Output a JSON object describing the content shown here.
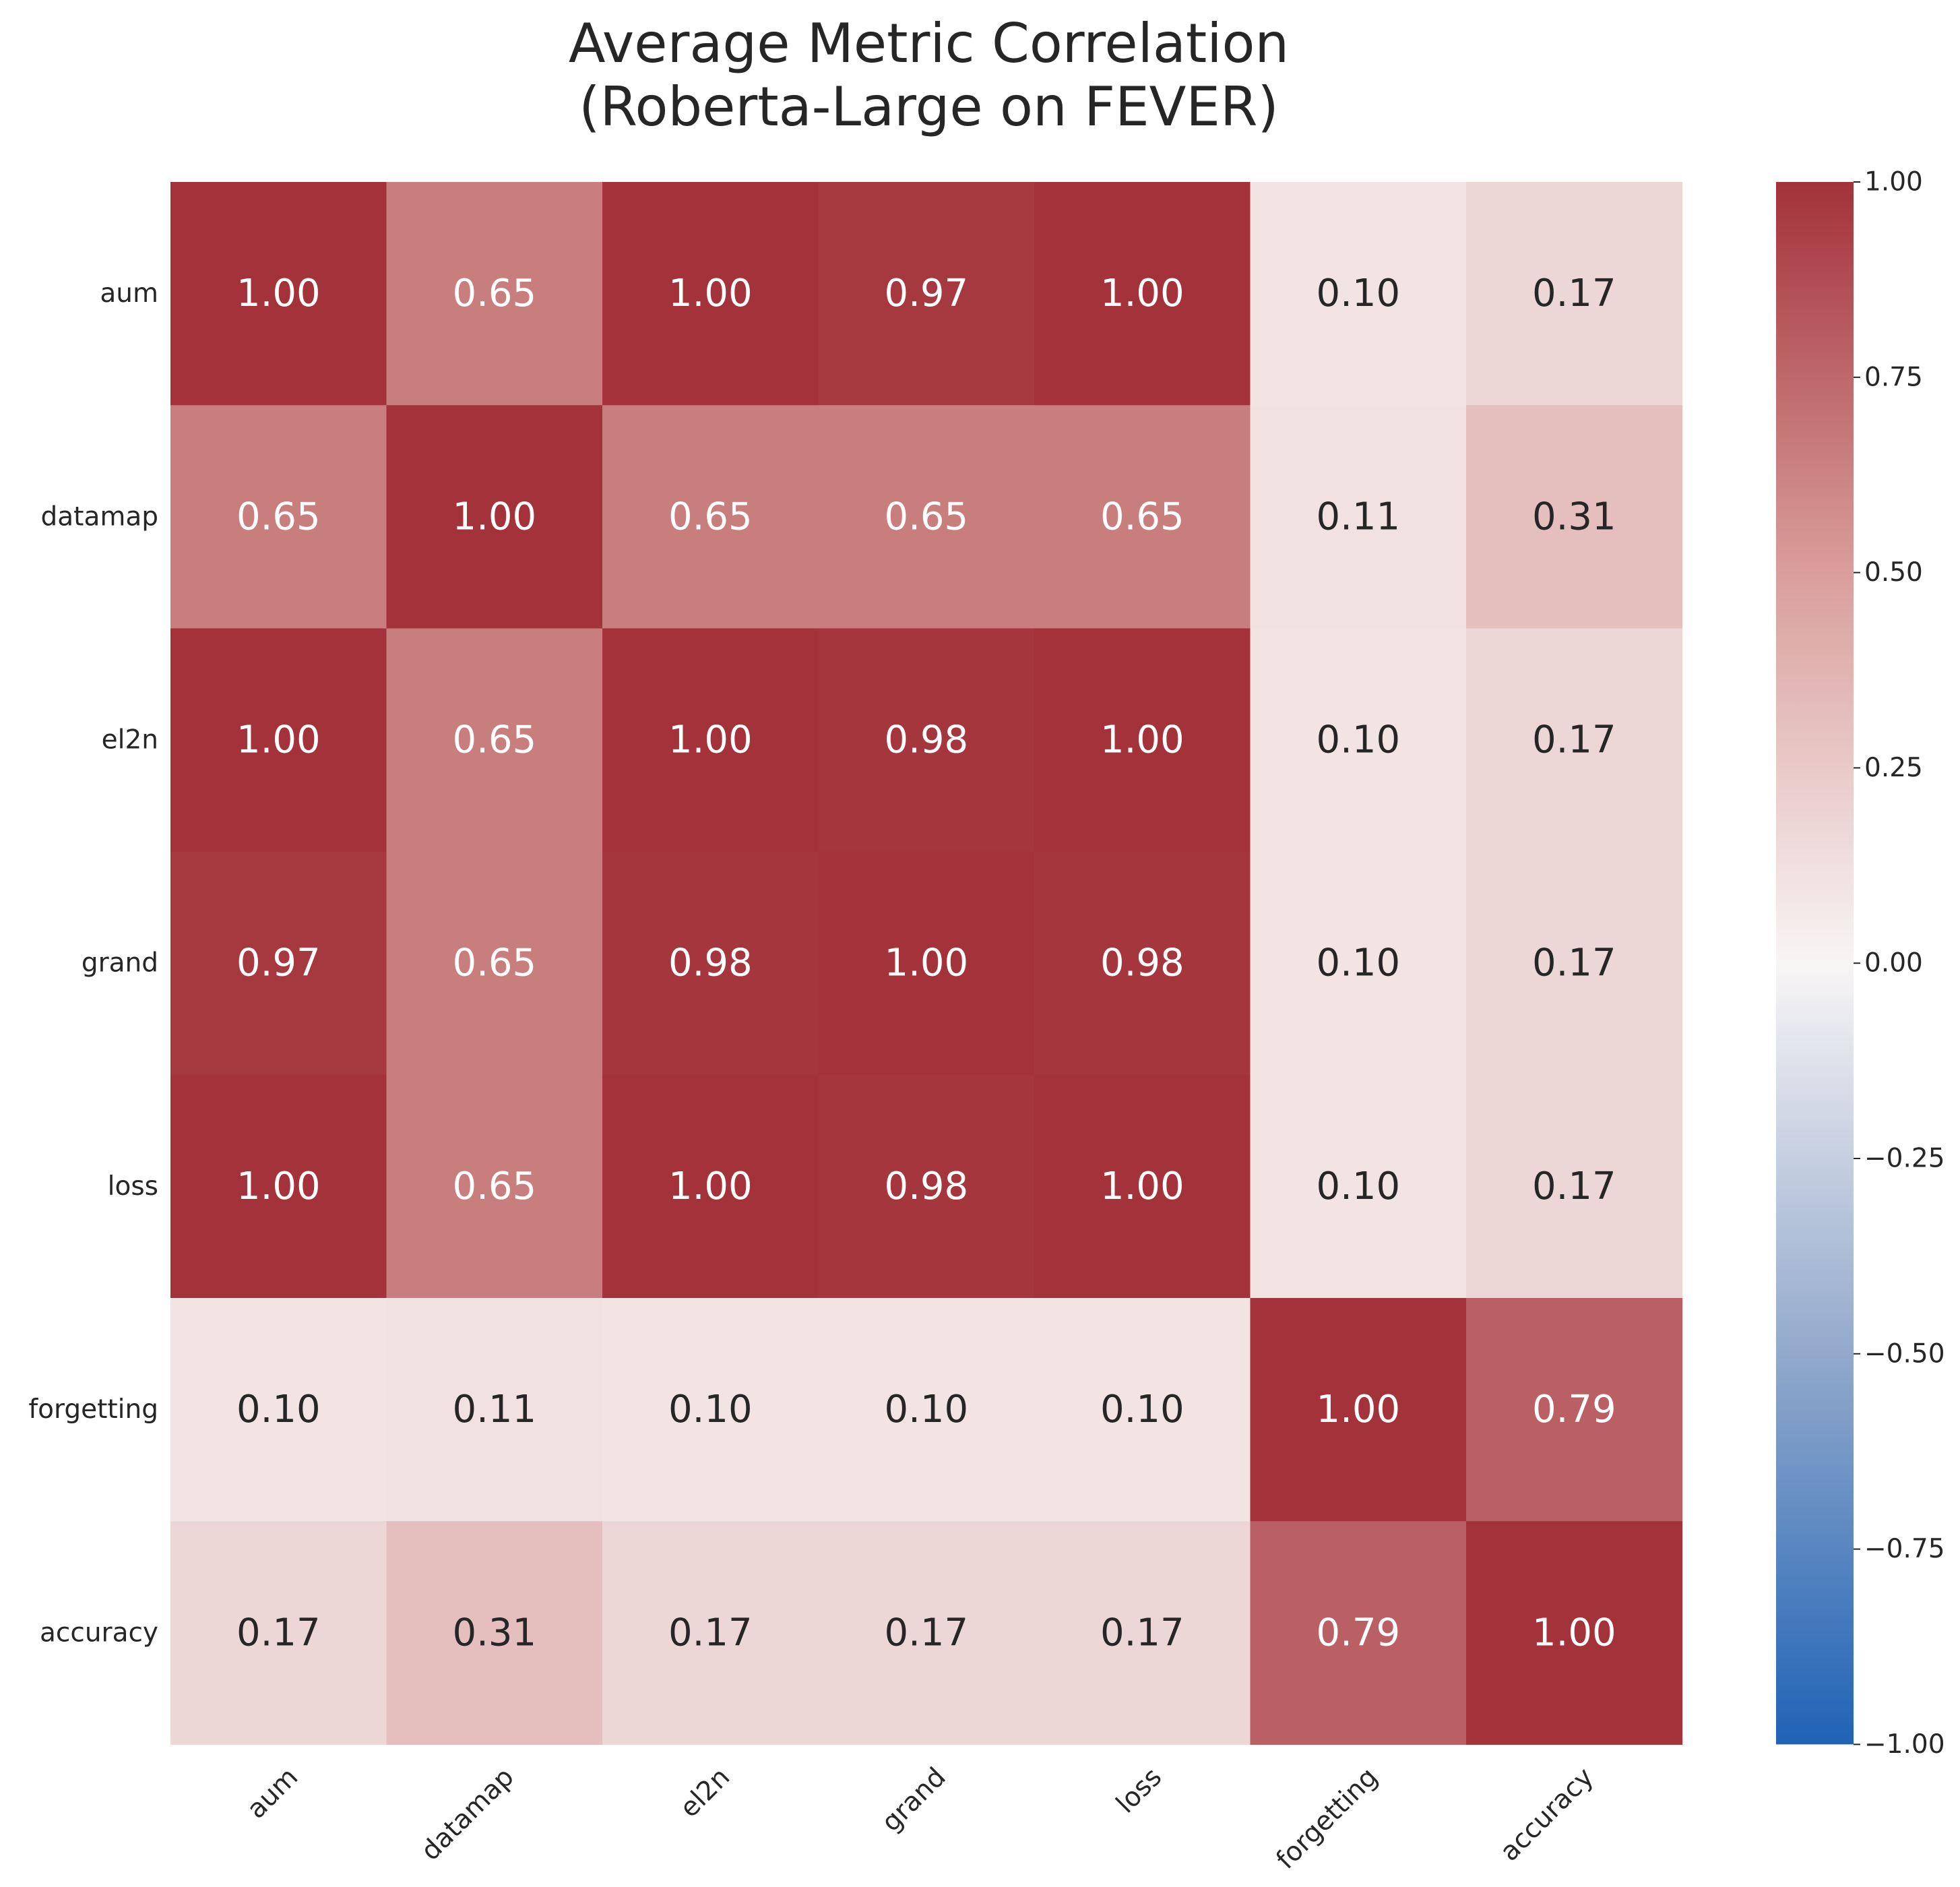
{
  "chart_data": {
    "type": "heatmap",
    "title": [
      "Average Metric Correlation",
      "(Roberta-Large on FEVER)"
    ],
    "row_labels": [
      "aum",
      "datamap",
      "el2n",
      "grand",
      "loss",
      "forgetting",
      "accuracy"
    ],
    "col_labels": [
      "aum",
      "datamap",
      "el2n",
      "grand",
      "loss",
      "forgetting",
      "accuracy"
    ],
    "values": [
      [
        1.0,
        0.65,
        1.0,
        0.97,
        1.0,
        0.1,
        0.17
      ],
      [
        0.65,
        1.0,
        0.65,
        0.65,
        0.65,
        0.11,
        0.31
      ],
      [
        1.0,
        0.65,
        1.0,
        0.98,
        1.0,
        0.1,
        0.17
      ],
      [
        0.97,
        0.65,
        0.98,
        1.0,
        0.98,
        0.1,
        0.17
      ],
      [
        1.0,
        0.65,
        1.0,
        0.98,
        1.0,
        0.1,
        0.17
      ],
      [
        0.1,
        0.11,
        0.1,
        0.1,
        0.1,
        1.0,
        0.79
      ],
      [
        0.17,
        0.31,
        0.17,
        0.17,
        0.17,
        0.79,
        1.0
      ]
    ],
    "value_format": "0.00",
    "colorbar": {
      "colormap": "diverging blue-white-red",
      "vmin": -1.0,
      "vmax": 1.0,
      "tick_values": [
        -1.0,
        -0.75,
        -0.5,
        -0.25,
        0.0,
        0.25,
        0.5,
        0.75,
        1.0
      ],
      "tick_labels": [
        "−1.00",
        "−0.75",
        "−0.50",
        "−0.25",
        "0.00",
        "0.25",
        "0.50",
        "0.75",
        "1.00"
      ],
      "color_stops": [
        {
          "value": -1.0,
          "color": "#1f63b5"
        },
        {
          "value": -0.5,
          "color": "#92a9cc"
        },
        {
          "value": 0.0,
          "color": "#f8f5f5"
        },
        {
          "value": 0.5,
          "color": "#d99e9b"
        },
        {
          "value": 1.0,
          "color": "#a3323a"
        }
      ]
    },
    "text_colors": {
      "light": "#ffffff",
      "dark": "#262626"
    },
    "light_text_threshold": 0.5,
    "grid": false
  }
}
